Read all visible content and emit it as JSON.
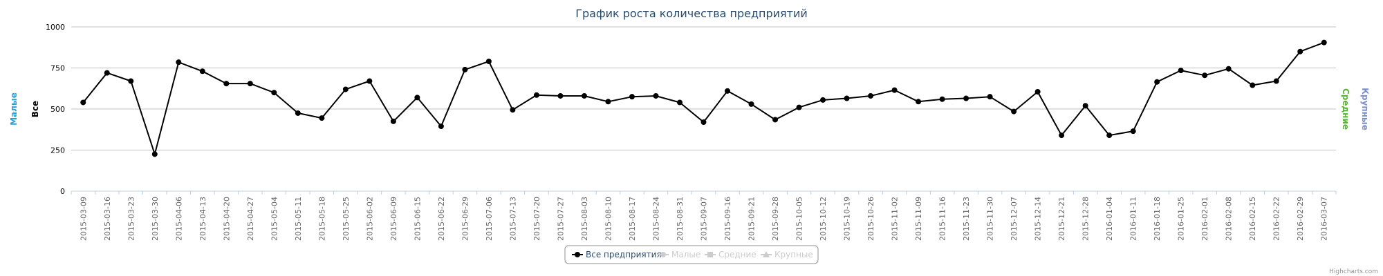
{
  "chart_data": {
    "type": "line",
    "title": "График роста количества предприятий",
    "y_axis_titles": [
      {
        "text": "Малые",
        "color": "#2aa2d6"
      },
      {
        "text": "Все",
        "color": "#000000"
      },
      {
        "text": "Средние",
        "color": "#55b531"
      },
      {
        "text": "Крупные",
        "color": "#7b8ec8"
      }
    ],
    "ylim": [
      0,
      1000
    ],
    "yticks": [
      0,
      250,
      500,
      750,
      1000
    ],
    "grid": true,
    "legend_position": "bottom-center",
    "legend": [
      {
        "name": "Все предприятия",
        "active": true
      },
      {
        "name": "Малые",
        "active": false
      },
      {
        "name": "Средние",
        "active": false
      },
      {
        "name": "Крупные",
        "active": false
      }
    ],
    "x": [
      "2015-03-09",
      "2015-03-16",
      "2015-03-23",
      "2015-03-30",
      "2015-04-06",
      "2015-04-13",
      "2015-04-20",
      "2015-04-27",
      "2015-05-04",
      "2015-05-11",
      "2015-05-18",
      "2015-05-25",
      "2015-06-02",
      "2015-06-09",
      "2015-06-15",
      "2015-06-22",
      "2015-06-29",
      "2015-07-06",
      "2015-07-13",
      "2015-07-20",
      "2015-07-27",
      "2015-08-03",
      "2015-08-10",
      "2015-08-17",
      "2015-08-24",
      "2015-08-31",
      "2015-09-07",
      "2015-09-16",
      "2015-09-21",
      "2015-09-28",
      "2015-10-05",
      "2015-10-12",
      "2015-10-19",
      "2015-10-26",
      "2015-11-02",
      "2015-11-09",
      "2015-11-16",
      "2015-11-23",
      "2015-11-30",
      "2015-12-07",
      "2015-12-14",
      "2015-12-21",
      "2015-12-28",
      "2016-01-04",
      "2016-01-11",
      "2016-01-18",
      "2016-01-25",
      "2016-02-01",
      "2016-02-08",
      "2016-02-15",
      "2016-02-22",
      "2016-02-29",
      "2016-03-07"
    ],
    "series": [
      {
        "name": "Все предприятия",
        "color": "#000000",
        "values": [
          540,
          720,
          670,
          225,
          785,
          730,
          655,
          655,
          600,
          475,
          445,
          620,
          670,
          425,
          570,
          395,
          740,
          790,
          495,
          585,
          580,
          580,
          545,
          575,
          580,
          540,
          420,
          610,
          530,
          435,
          510,
          555,
          565,
          580,
          615,
          545,
          560,
          565,
          575,
          485,
          605,
          340,
          520,
          340,
          365,
          665,
          735,
          705,
          745,
          645,
          670,
          850,
          905
        ]
      }
    ],
    "credits": "Highcharts.com"
  }
}
